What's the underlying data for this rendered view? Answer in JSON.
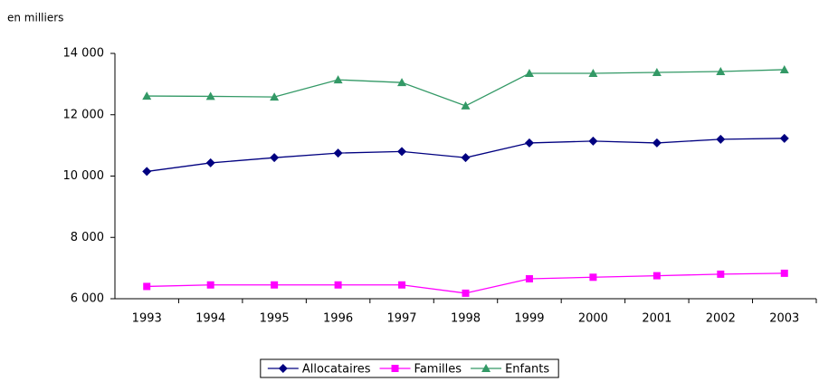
{
  "chart_data": {
    "type": "line",
    "subtitle": "en milliers",
    "categories": [
      "1993",
      "1994",
      "1995",
      "1996",
      "1997",
      "1998",
      "1999",
      "2000",
      "2001",
      "2002",
      "2003"
    ],
    "series": [
      {
        "name": "Allocataires",
        "color": "#000080",
        "marker": "diamond",
        "values": [
          10150,
          10430,
          10600,
          10750,
          10800,
          10600,
          11080,
          11140,
          11080,
          11200,
          11230
        ]
      },
      {
        "name": "Familles",
        "color": "#ff00ff",
        "marker": "square",
        "values": [
          6400,
          6450,
          6450,
          6450,
          6450,
          6180,
          6650,
          6700,
          6750,
          6800,
          6830
        ]
      },
      {
        "name": "Enfants",
        "color": "#339966",
        "marker": "triangle",
        "values": [
          12610,
          12600,
          12580,
          13140,
          13050,
          12290,
          13350,
          13350,
          13380,
          13410,
          13470
        ]
      }
    ],
    "ylim": [
      6000,
      14000
    ],
    "yticks": [
      {
        "value": 6000,
        "label": "6 000"
      },
      {
        "value": 8000,
        "label": "8 000"
      },
      {
        "value": 10000,
        "label": "10 000"
      },
      {
        "value": 12000,
        "label": "12 000"
      },
      {
        "value": 14000,
        "label": "14 000"
      }
    ],
    "grid": false,
    "legend": "bottom"
  }
}
